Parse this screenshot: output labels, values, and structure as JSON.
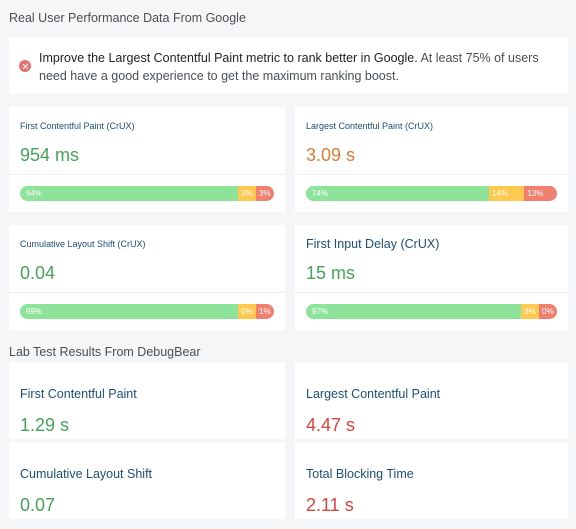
{
  "sections": {
    "crux_title": "Real User Performance Data From Google",
    "lab_title": "Lab Test Results From DebugBear"
  },
  "alert": {
    "icon": "error-x-circle-icon",
    "bold_text": "Improve the Largest Contentful Paint metric to rank better in Google.",
    "rest_text": " At least 75% of users need have a good experience to get the maximum ranking boost."
  },
  "crux_metrics": [
    {
      "label": "First Contentful Paint (CrUX)",
      "value": "954 ms",
      "status": "good",
      "distribution": {
        "good": 94,
        "needs_improvement": 3,
        "poor": 3
      },
      "good_label": "94%",
      "ni_label": "3%",
      "poor_label": "3%"
    },
    {
      "label": "Largest Contentful Paint (CrUX)",
      "value": "3.09 s",
      "status": "needs-improvement",
      "distribution": {
        "good": 74,
        "needs_improvement": 14,
        "poor": 13
      },
      "good_label": "74%",
      "ni_label": "14%",
      "poor_label": "13%"
    },
    {
      "label": "Cumulative Layout Shift (CrUX)",
      "value": "0.04",
      "status": "good",
      "distribution": {
        "good": 99,
        "needs_improvement": 0,
        "poor": 1
      },
      "good_label": "99%",
      "ni_label": "0%",
      "poor_label": "1%"
    },
    {
      "label": "First Input Delay (CrUX)",
      "value": "15 ms",
      "status": "good",
      "distribution": {
        "good": 97,
        "needs_improvement": 3,
        "poor": 0
      },
      "good_label": "97%",
      "ni_label": "3%",
      "poor_label": "0%"
    }
  ],
  "lab_metrics": [
    {
      "label": "First Contentful Paint",
      "value": "1.29 s",
      "status": "good"
    },
    {
      "label": "Largest Contentful Paint",
      "value": "4.47 s",
      "status": "poor"
    },
    {
      "label": "Cumulative Layout Shift",
      "value": "0.07",
      "status": "good"
    },
    {
      "label": "Total Blocking Time",
      "value": "2.11 s",
      "status": "poor"
    }
  ],
  "colors": {
    "good": "#46a35a",
    "needs_improvement": "#dd7a34",
    "poor": "#d9443a",
    "bar_good": "#8ee39a",
    "bar_needs_improvement": "#ffc94f",
    "bar_poor": "#f07f70"
  }
}
